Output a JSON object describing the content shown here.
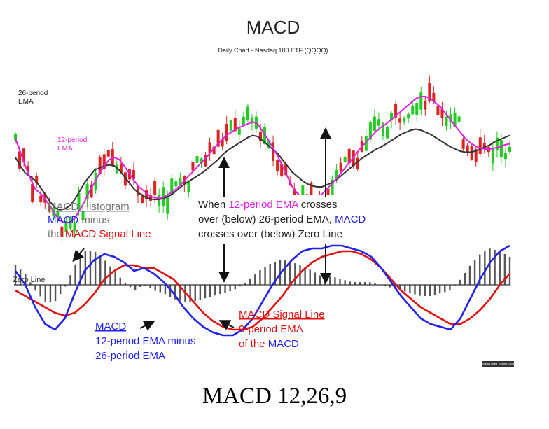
{
  "chart_data": {
    "type": "line",
    "title": "MACD",
    "subtitle": "Daily Chart - Nasdaq 100 ETF (QQQQ)",
    "zero_line_label": "Zero Line",
    "credit": "Created with TradeStation",
    "caption": "MACD 12,26,9",
    "price_panel": {
      "series": [
        {
          "name": "26-period EMA",
          "color": "#333333",
          "values": [
            180,
            172,
            165,
            162,
            158,
            152,
            145,
            138,
            132,
            130,
            131,
            134,
            140,
            148,
            156,
            162,
            168,
            170,
            172,
            173,
            172,
            168,
            162,
            156,
            150,
            146,
            143,
            141,
            140,
            140,
            141,
            143,
            146,
            150,
            154,
            157,
            160,
            163,
            166,
            170,
            174,
            178,
            183,
            187,
            190,
            193,
            196,
            199,
            201,
            200,
            196,
            192,
            188,
            184,
            178,
            172,
            166,
            162,
            158,
            155,
            153,
            152,
            152,
            154,
            156,
            159,
            163,
            167,
            171,
            175,
            179,
            182,
            185,
            188,
            190,
            193,
            196,
            199,
            202,
            204,
            206,
            207,
            206,
            204,
            202,
            199,
            196,
            193,
            190,
            188,
            186,
            185,
            185,
            186,
            188,
            190,
            192,
            195,
            197,
            199,
            201
          ]
        },
        {
          "name": "12-period EMA",
          "color": "#e020e0",
          "values": [
            198,
            185,
            172,
            160,
            150,
            146,
            140,
            134,
            126,
            120,
            118,
            118,
            122,
            130,
            138,
            148,
            156,
            165,
            172,
            178,
            180,
            178,
            172,
            165,
            158,
            152,
            148,
            144,
            142,
            141,
            142,
            145,
            148,
            152,
            157,
            162,
            167,
            172,
            177,
            182,
            188,
            193,
            198,
            202,
            205,
            208,
            210,
            212,
            214,
            212,
            205,
            198,
            190,
            182,
            172,
            162,
            152,
            146,
            142,
            140,
            140,
            142,
            145,
            150,
            155,
            160,
            166,
            172,
            178,
            184,
            190,
            195,
            200,
            205,
            209,
            212,
            216,
            220,
            224,
            228,
            232,
            236,
            238,
            238,
            236,
            232,
            228,
            222,
            216,
            210,
            204,
            198,
            194,
            191,
            189,
            188,
            188,
            189,
            190,
            192,
            193
          ]
        }
      ],
      "ohlc_note": "daily candlesticks"
    },
    "macd_panel": {
      "series": [
        {
          "name": "MACD",
          "color": "#2222ee",
          "values": [
            0.5,
            0.0,
            -0.8,
            -1.4,
            -1.6,
            -1.2,
            -0.3,
            0.5,
            0.9,
            1.1,
            1.0,
            0.8,
            0.5,
            0.6,
            0.4,
            0.1,
            -0.3,
            -0.8,
            -1.2,
            -1.5,
            -1.7,
            -1.8,
            -1.8,
            -1.6,
            -1.2,
            -0.6,
            0.0,
            0.5,
            0.9,
            1.2,
            1.3,
            1.3,
            1.4,
            1.4,
            1.3,
            1.2,
            1.0,
            0.6,
            0.1,
            -0.4,
            -0.8,
            -1.2,
            -1.4,
            -1.5,
            -1.6,
            -1.2,
            -0.5,
            0.2,
            0.8,
            1.2,
            1.4
          ]
        },
        {
          "name": "MACD Signal Line",
          "color": "#e01010",
          "values": [
            -0.2,
            -0.4,
            -0.6,
            -0.8,
            -1.0,
            -1.1,
            -1.0,
            -0.7,
            -0.3,
            0.2,
            0.5,
            0.7,
            0.7,
            0.6,
            0.6,
            0.4,
            0.2,
            -0.2,
            -0.6,
            -1.0,
            -1.3,
            -1.5,
            -1.6,
            -1.6,
            -1.5,
            -1.2,
            -0.8,
            -0.4,
            0.1,
            0.5,
            0.8,
            1.0,
            1.1,
            1.2,
            1.2,
            1.1,
            0.9,
            0.6,
            0.2,
            -0.2,
            -0.5,
            -0.8,
            -1.0,
            -1.2,
            -1.4,
            -1.4,
            -1.2,
            -0.9,
            -0.5,
            0.0,
            0.4
          ]
        }
      ],
      "histogram": {
        "name": "MACD Histogram",
        "color": "#555555"
      },
      "ylim": [
        -2,
        2
      ]
    },
    "annotations": {
      "ema26": [
        "26-period",
        "EMA"
      ],
      "ema12": [
        "12-period",
        "EMA"
      ],
      "histogram": {
        "title": "MACD Histogram",
        "l2a": "MACD",
        "l2b": " minus",
        "l3a": "the ",
        "l3b": "MACD Signal Line"
      },
      "cross": {
        "l1a": "When ",
        "l1b": "12-period EMA",
        "l1c": " crosses",
        "l2a": "over (below) 26-period EMA, ",
        "l2b": "MACD",
        "l3": "crosses over (below) Zero Line"
      },
      "macd_def": {
        "l1": "MACD",
        "l2": "12-period EMA minus",
        "l3": "26-period EMA"
      },
      "signal_def": {
        "l1": "MACD Signal Line",
        "l2": "9-period EMA",
        "l3a": "of the ",
        "l3b": "MACD"
      }
    },
    "colors": {
      "blue": "#2222ee",
      "red": "#e01010",
      "magenta": "#e020e0",
      "gray": "#777777",
      "up": "#22cc22",
      "down": "#dd2222"
    }
  }
}
